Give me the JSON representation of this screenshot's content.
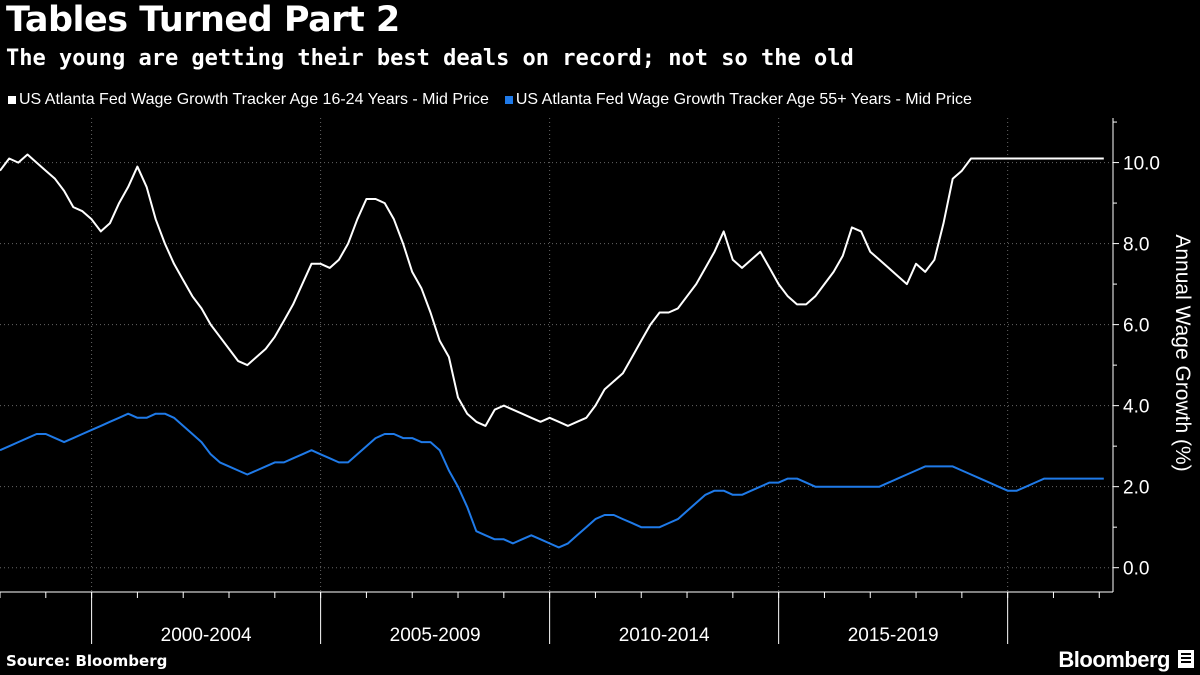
{
  "header": {
    "title": "Tables Turned Part 2",
    "subtitle": "The young are getting their best deals on record; not so the old"
  },
  "footer": {
    "source": "Source: Bloomberg",
    "brand": "Bloomberg"
  },
  "colors": {
    "background": "#000000",
    "series_young": "#ffffff",
    "series_old": "#1f7ae8",
    "grid": "#666666"
  },
  "chart_data": {
    "type": "line",
    "title": "Tables Turned Part 2",
    "subtitle": "The young are getting their best deals on record; not so the old",
    "xlabel": "",
    "ylabel": "Annual Wage Growth (%)",
    "y_axis_side": "right",
    "ylim": [
      -0.6,
      11.1
    ],
    "yticks": [
      0,
      2,
      4,
      6,
      8,
      10
    ],
    "ytick_labels": [
      "0.0",
      "2.0",
      "4.0",
      "6.0",
      "8.0",
      "10.0"
    ],
    "xlim": [
      1997.0,
      2021.3
    ],
    "x_period_labels": [
      {
        "label": "2000-2004",
        "from": 1999.0,
        "to": 2004.0
      },
      {
        "label": "2005-2009",
        "from": 2004.0,
        "to": 2009.0
      },
      {
        "label": "2010-2014",
        "from": 2009.0,
        "to": 2014.0
      },
      {
        "label": "2015-2019",
        "from": 2014.0,
        "to": 2019.0
      }
    ],
    "x_major_ticks": [
      1999.0,
      2004.0,
      2009.0,
      2014.0,
      2019.0
    ],
    "grid": true,
    "legend_position": "top-left",
    "series": [
      {
        "name": "US Atlanta Fed Wage Growth Tracker Age 16-24 Years - Mid Price",
        "color": "#ffffff",
        "x": [
          1997.0,
          1997.2,
          1997.4,
          1997.6,
          1997.8,
          1998.0,
          1998.2,
          1998.4,
          1998.6,
          1998.8,
          1999.0,
          1999.2,
          1999.4,
          1999.6,
          1999.8,
          2000.0,
          2000.2,
          2000.4,
          2000.6,
          2000.8,
          2001.0,
          2001.2,
          2001.4,
          2001.6,
          2001.8,
          2002.0,
          2002.2,
          2002.4,
          2002.6,
          2002.8,
          2003.0,
          2003.2,
          2003.4,
          2003.6,
          2003.8,
          2004.0,
          2004.2,
          2004.4,
          2004.6,
          2004.8,
          2005.0,
          2005.2,
          2005.4,
          2005.6,
          2005.8,
          2006.0,
          2006.2,
          2006.4,
          2006.6,
          2006.8,
          2007.0,
          2007.2,
          2007.4,
          2007.6,
          2007.8,
          2008.0,
          2008.2,
          2008.4,
          2008.6,
          2008.8,
          2009.0,
          2009.2,
          2009.4,
          2009.6,
          2009.8,
          2010.0,
          2010.2,
          2010.4,
          2010.6,
          2010.8,
          2011.0,
          2011.2,
          2011.4,
          2011.6,
          2011.8,
          2012.0,
          2012.2,
          2012.4,
          2012.6,
          2012.8,
          2013.0,
          2013.2,
          2013.4,
          2013.6,
          2013.8,
          2014.0,
          2014.2,
          2014.4,
          2014.6,
          2014.8,
          2015.0,
          2015.2,
          2015.4,
          2015.6,
          2015.8,
          2016.0,
          2016.2,
          2016.4,
          2016.6,
          2016.8,
          2017.0,
          2017.2,
          2017.4,
          2017.6,
          2017.8,
          2018.0,
          2018.2,
          2018.4,
          2018.6,
          2018.8,
          2019.0,
          2019.2,
          2019.4,
          2019.6,
          2019.8,
          2020.0,
          2020.2,
          2020.4,
          2020.6,
          2020.8,
          2021.0,
          2021.1
        ],
        "values": [
          9.8,
          10.1,
          10.0,
          10.2,
          10.0,
          9.8,
          9.6,
          9.3,
          8.9,
          8.8,
          8.6,
          8.3,
          8.5,
          9.0,
          9.4,
          9.9,
          9.4,
          8.6,
          8.0,
          7.5,
          7.1,
          6.7,
          6.4,
          6.0,
          5.7,
          5.4,
          5.1,
          5.0,
          5.2,
          5.4,
          5.7,
          6.1,
          6.5,
          7.0,
          7.5,
          7.5,
          7.4,
          7.6,
          8.0,
          8.6,
          9.1,
          9.1,
          9.0,
          8.6,
          8.0,
          7.3,
          6.9,
          6.3,
          5.6,
          5.2,
          4.2,
          3.8,
          3.6,
          3.5,
          3.9,
          4.0,
          3.9,
          3.8,
          3.7,
          3.6,
          3.7,
          3.6,
          3.5,
          3.6,
          3.7,
          4.0,
          4.4,
          4.6,
          4.8,
          5.2,
          5.6,
          6.0,
          6.3,
          6.3,
          6.4,
          6.7,
          7.0,
          7.4,
          7.8,
          8.3,
          7.6,
          7.4,
          7.6,
          7.8,
          7.4,
          7.0,
          6.7,
          6.5,
          6.5,
          6.7,
          7.0,
          7.3,
          7.7,
          8.4,
          8.3,
          7.8,
          7.6,
          7.4,
          7.2,
          7.0,
          7.5,
          7.3,
          7.6,
          8.5,
          9.6,
          9.8,
          10.1,
          10.1,
          10.1,
          10.1,
          10.1,
          10.1,
          10.1,
          10.1,
          10.1,
          10.1,
          10.1,
          10.1,
          10.1,
          10.1,
          10.1,
          10.1
        ]
      },
      {
        "name": "US Atlanta Fed Wage Growth Tracker Age 55+ Years - Mid Price",
        "color": "#1f7ae8",
        "x": [
          1997.0,
          1997.2,
          1997.4,
          1997.6,
          1997.8,
          1998.0,
          1998.2,
          1998.4,
          1998.6,
          1998.8,
          1999.0,
          1999.2,
          1999.4,
          1999.6,
          1999.8,
          2000.0,
          2000.2,
          2000.4,
          2000.6,
          2000.8,
          2001.0,
          2001.2,
          2001.4,
          2001.6,
          2001.8,
          2002.0,
          2002.2,
          2002.4,
          2002.6,
          2002.8,
          2003.0,
          2003.2,
          2003.4,
          2003.6,
          2003.8,
          2004.0,
          2004.2,
          2004.4,
          2004.6,
          2004.8,
          2005.0,
          2005.2,
          2005.4,
          2005.6,
          2005.8,
          2006.0,
          2006.2,
          2006.4,
          2006.6,
          2006.8,
          2007.0,
          2007.2,
          2007.4,
          2007.6,
          2007.8,
          2008.0,
          2008.2,
          2008.4,
          2008.6,
          2008.8,
          2009.0,
          2009.2,
          2009.4,
          2009.6,
          2009.8,
          2010.0,
          2010.2,
          2010.4,
          2010.6,
          2010.8,
          2011.0,
          2011.2,
          2011.4,
          2011.6,
          2011.8,
          2012.0,
          2012.2,
          2012.4,
          2012.6,
          2012.8,
          2013.0,
          2013.2,
          2013.4,
          2013.6,
          2013.8,
          2014.0,
          2014.2,
          2014.4,
          2014.6,
          2014.8,
          2015.0,
          2015.2,
          2015.4,
          2015.6,
          2015.8,
          2016.0,
          2016.2,
          2016.4,
          2016.6,
          2016.8,
          2017.0,
          2017.2,
          2017.4,
          2017.6,
          2017.8,
          2018.0,
          2018.2,
          2018.4,
          2018.6,
          2018.8,
          2019.0,
          2019.2,
          2019.4,
          2019.6,
          2019.8,
          2020.0,
          2020.2,
          2020.4,
          2020.6,
          2020.8,
          2021.0,
          2021.1
        ],
        "values": [
          2.9,
          3.0,
          3.1,
          3.2,
          3.3,
          3.3,
          3.2,
          3.1,
          3.2,
          3.3,
          3.4,
          3.5,
          3.6,
          3.7,
          3.8,
          3.7,
          3.7,
          3.8,
          3.8,
          3.7,
          3.5,
          3.3,
          3.1,
          2.8,
          2.6,
          2.5,
          2.4,
          2.3,
          2.4,
          2.5,
          2.6,
          2.6,
          2.7,
          2.8,
          2.9,
          2.8,
          2.7,
          2.6,
          2.6,
          2.8,
          3.0,
          3.2,
          3.3,
          3.3,
          3.2,
          3.2,
          3.1,
          3.1,
          2.9,
          2.4,
          2.0,
          1.5,
          0.9,
          0.8,
          0.7,
          0.7,
          0.6,
          0.7,
          0.8,
          0.7,
          0.6,
          0.5,
          0.6,
          0.8,
          1.0,
          1.2,
          1.3,
          1.3,
          1.2,
          1.1,
          1.0,
          1.0,
          1.0,
          1.1,
          1.2,
          1.4,
          1.6,
          1.8,
          1.9,
          1.9,
          1.8,
          1.8,
          1.9,
          2.0,
          2.1,
          2.1,
          2.2,
          2.2,
          2.1,
          2.0,
          2.0,
          2.0,
          2.0,
          2.0,
          2.0,
          2.0,
          2.0,
          2.1,
          2.2,
          2.3,
          2.4,
          2.5,
          2.5,
          2.5,
          2.5,
          2.4,
          2.3,
          2.2,
          2.1,
          2.0,
          1.9,
          1.9,
          2.0,
          2.1,
          2.2,
          2.2,
          2.2,
          2.2,
          2.2,
          2.2,
          2.2,
          2.2
        ]
      }
    ]
  }
}
